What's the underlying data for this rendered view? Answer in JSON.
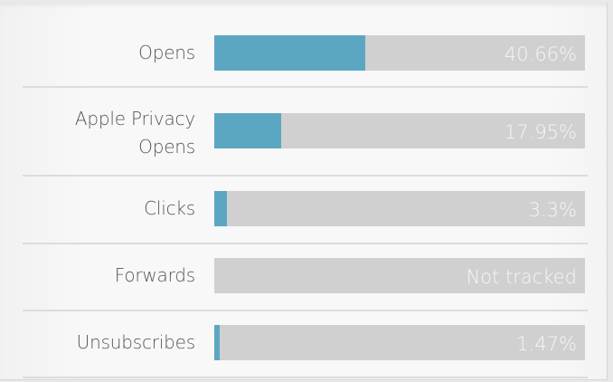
{
  "chart_data": {
    "type": "bar",
    "orientation": "horizontal",
    "categories": [
      "Opens",
      "Apple Privacy Opens",
      "Clicks",
      "Forwards",
      "Unsubscribes"
    ],
    "values": [
      40.66,
      17.95,
      3.3,
      null,
      1.47
    ],
    "value_labels": [
      "40.66%",
      "17.95%",
      "3.3%",
      "Not tracked",
      "1.47%"
    ],
    "xlim": [
      0,
      100
    ],
    "colors": {
      "fill": "#5ba7c2",
      "track": "#d0d0d0"
    }
  }
}
